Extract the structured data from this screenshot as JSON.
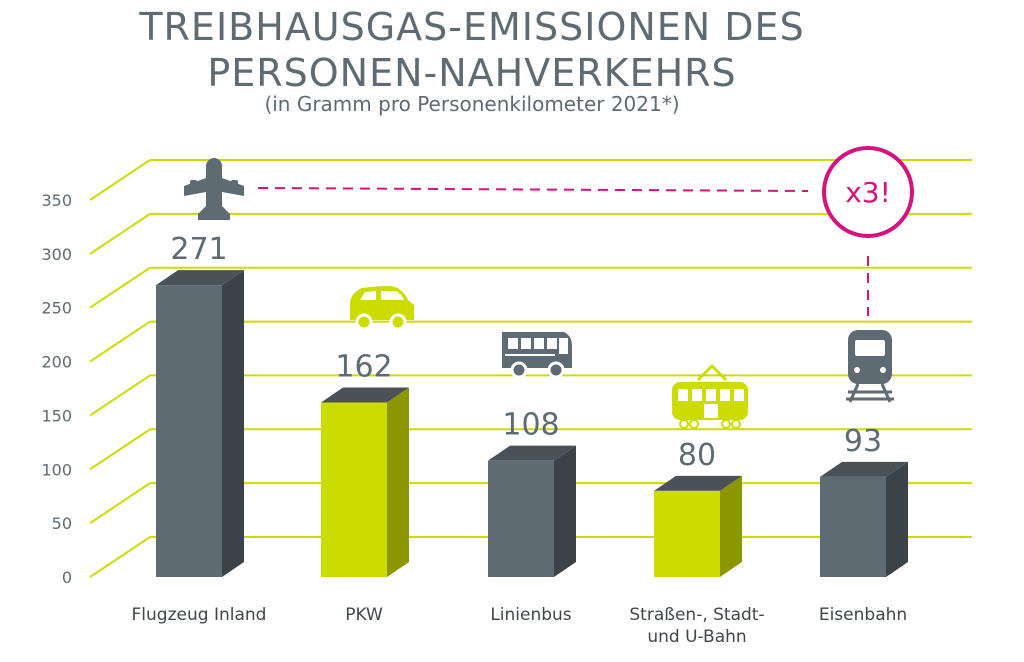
{
  "header": {
    "title_line1": "TREIBHAUSGAS-EMISSIONEN DES",
    "title_line2": "PERSONEN-NAHVERKEHRS",
    "subtitle": "(in Gramm pro Personenkilometer 2021*)"
  },
  "chart_data": {
    "type": "bar",
    "title": "TREIBHAUSGAS-EMISSIONEN DES PERSONEN-NAHVERKEHRS",
    "subtitle": "(in Gramm pro Personenkilometer 2021*)",
    "categories": [
      [
        "Flugzeug Inland"
      ],
      [
        "PKW"
      ],
      [
        "Linienbus"
      ],
      [
        "Straßen-, Stadt-",
        "und U-Bahn"
      ],
      [
        "Eisenbahn"
      ]
    ],
    "values": [
      271,
      162,
      108,
      80,
      93
    ],
    "icons": [
      "airplane-icon",
      "car-icon",
      "bus-icon",
      "tram-icon",
      "train-icon"
    ],
    "bar_colors": [
      "#5f6b73",
      "#cddc00",
      "#5f6b73",
      "#cddc00",
      "#5f6b73"
    ],
    "ylim": [
      0,
      350
    ],
    "yticks": [
      0,
      50,
      100,
      150,
      200,
      250,
      300,
      350
    ],
    "grid": true,
    "grid_color": "#cddc00",
    "annotation": {
      "text": "x3!",
      "color": "#d6127f"
    }
  }
}
